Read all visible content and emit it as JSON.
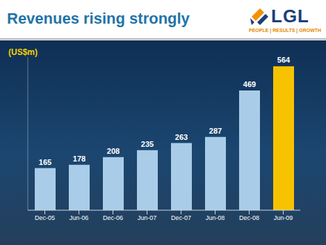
{
  "logo": {
    "name": "LGL",
    "tagline": "PEOPLE | RESULTS | GROWTH"
  },
  "chart_data": {
    "type": "bar",
    "title": "Revenues rising strongly",
    "ylabel": "(US$m)",
    "categories": [
      "Dec-05",
      "Jun-06",
      "Dec-06",
      "Jun-07",
      "Dec-07",
      "Jun-08",
      "Dec-08",
      "Jun-09"
    ],
    "values": [
      165,
      178,
      208,
      235,
      263,
      287,
      469,
      564
    ],
    "colors": [
      "#a9cde8",
      "#a9cde8",
      "#a9cde8",
      "#a9cde8",
      "#a9cde8",
      "#a9cde8",
      "#a9cde8",
      "#f7c300"
    ],
    "ylim": [
      0,
      600
    ],
    "yticks": [],
    "tick_labels": "x",
    "data_labels": true,
    "grid": false
  }
}
